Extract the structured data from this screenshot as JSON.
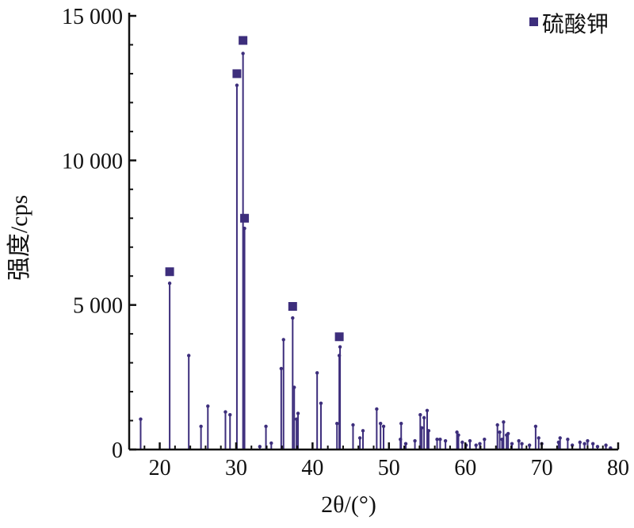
{
  "chart_data": {
    "type": "stem",
    "xlabel": "2θ/(°)",
    "ylabel": "强度/cps",
    "xlim": [
      16,
      80
    ],
    "ylim": [
      0,
      15000
    ],
    "x_ticks": [
      20,
      30,
      40,
      50,
      60,
      70,
      80
    ],
    "y_ticks": [
      0,
      5000,
      10000,
      15000
    ],
    "y_tick_labels": [
      "0",
      "5 000",
      "10 000",
      "15 000"
    ],
    "grid": false,
    "legend": {
      "position": "top-right",
      "entries": [
        {
          "name": "硫酸钾",
          "marker": "square"
        }
      ]
    },
    "colors": {
      "stem": "#3d2e7c",
      "marker": "#3d2e7c",
      "axis": "#111111"
    },
    "series": [
      {
        "name": "diffraction peaks",
        "points": [
          [
            17.5,
            1050
          ],
          [
            21.3,
            5750
          ],
          [
            23.8,
            3250
          ],
          [
            25.4,
            800
          ],
          [
            26.3,
            1500
          ],
          [
            28.6,
            1300
          ],
          [
            29.2,
            1200
          ],
          [
            30.1,
            12600
          ],
          [
            30.9,
            13700
          ],
          [
            31.1,
            7650
          ],
          [
            33.1,
            100
          ],
          [
            33.9,
            800
          ],
          [
            34.6,
            220
          ],
          [
            35.9,
            2800
          ],
          [
            36.2,
            3800
          ],
          [
            37.4,
            4550
          ],
          [
            37.6,
            2150
          ],
          [
            37.9,
            1050
          ],
          [
            38.1,
            1250
          ],
          [
            40.6,
            2650
          ],
          [
            41.1,
            1600
          ],
          [
            43.2,
            900
          ],
          [
            43.5,
            3250
          ],
          [
            43.6,
            3550
          ],
          [
            45.3,
            850
          ],
          [
            46.2,
            400
          ],
          [
            46.6,
            650
          ],
          [
            48.4,
            1400
          ],
          [
            48.9,
            900
          ],
          [
            49.3,
            800
          ],
          [
            51.5,
            350
          ],
          [
            51.6,
            900
          ],
          [
            52.2,
            200
          ],
          [
            53.4,
            300
          ],
          [
            54.1,
            1200
          ],
          [
            54.3,
            750
          ],
          [
            54.6,
            1100
          ],
          [
            55.0,
            1350
          ],
          [
            55.2,
            650
          ],
          [
            56.3,
            350
          ],
          [
            56.7,
            350
          ],
          [
            57.4,
            300
          ],
          [
            58.9,
            600
          ],
          [
            59.1,
            500
          ],
          [
            59.6,
            250
          ],
          [
            60.1,
            150
          ],
          [
            60.6,
            300
          ],
          [
            61.4,
            150
          ],
          [
            61.9,
            200
          ],
          [
            62.5,
            350
          ],
          [
            64.2,
            850
          ],
          [
            64.5,
            600
          ],
          [
            64.8,
            350
          ],
          [
            65.0,
            950
          ],
          [
            65.4,
            500
          ],
          [
            65.6,
            550
          ],
          [
            66.1,
            200
          ],
          [
            67.0,
            300
          ],
          [
            67.4,
            200
          ],
          [
            68.4,
            150
          ],
          [
            69.2,
            800
          ],
          [
            69.6,
            400
          ],
          [
            70.0,
            200
          ],
          [
            72.2,
            250
          ],
          [
            72.4,
            400
          ],
          [
            73.4,
            350
          ],
          [
            74.0,
            150
          ],
          [
            75.0,
            250
          ],
          [
            75.6,
            200
          ],
          [
            76.0,
            300
          ],
          [
            76.7,
            200
          ],
          [
            77.3,
            100
          ],
          [
            78.4,
            150
          ],
          [
            79.0,
            50
          ]
        ]
      },
      {
        "name": "硫酸钾",
        "points": [
          [
            21.3,
            6150
          ],
          [
            30.1,
            13000
          ],
          [
            30.9,
            14150
          ],
          [
            31.1,
            8000
          ],
          [
            37.4,
            4950
          ],
          [
            43.5,
            3900
          ]
        ]
      }
    ]
  }
}
